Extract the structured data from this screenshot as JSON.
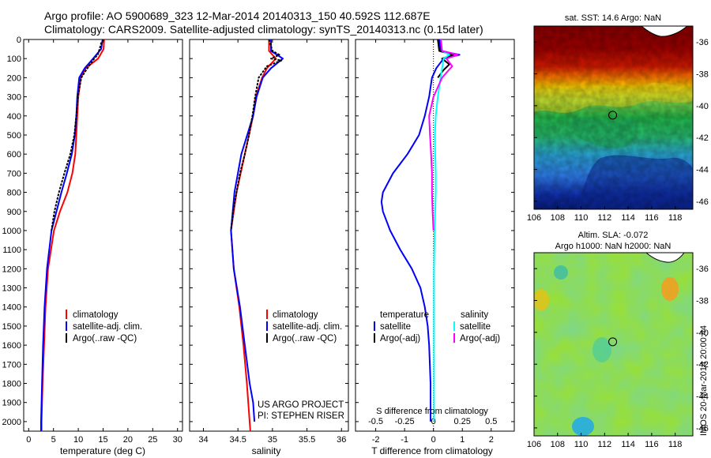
{
  "figure": {
    "title_line1": "Argo profile: AO 5900689_323 12-Mar-2014 20140313_150 40.592S 112.687E",
    "title_line2": "Climatology: CARS2009. Satellite-adjusted climatology: synTS_20140313.nc (0.15d later)",
    "side_label": "IMOS 20-Mar-2014 20:00:44",
    "project_line1": "US ARGO PROJECT",
    "project_line2": "PI: STEPHEN RISER"
  },
  "colors": {
    "climatology": "#ff0000",
    "satellite": "#0000ff",
    "argo": "#000000",
    "salinity_satellite": "#00ffff",
    "salinity_argo": "#ff00ff"
  },
  "chart_data": [
    {
      "type": "line",
      "xlabel": "temperature (deg C)",
      "xlim": [
        -1,
        31
      ],
      "ylim": [
        2050,
        0
      ],
      "xticks": [
        0,
        5,
        10,
        15,
        20,
        25,
        30
      ],
      "yticks": [
        0,
        100,
        200,
        300,
        400,
        500,
        600,
        700,
        800,
        900,
        1000,
        1100,
        1200,
        1300,
        1400,
        1500,
        1600,
        1700,
        1800,
        1900,
        2000
      ],
      "legend": [
        "climatology",
        "satellite-adj. clim.",
        "Argo(..raw -QC)"
      ],
      "series": [
        {
          "name": "climatology",
          "color": "#ff0000",
          "depth": [
            0,
            50,
            100,
            150,
            200,
            300,
            400,
            500,
            600,
            700,
            800,
            900,
            1000,
            1200,
            1400,
            1600,
            1800,
            2000,
            2050
          ],
          "values": [
            15.2,
            15.1,
            14.0,
            11.5,
            10.5,
            10.0,
            9.8,
            9.6,
            9.4,
            8.8,
            7.8,
            6.3,
            5.1,
            3.9,
            3.4,
            3.1,
            2.8,
            2.6,
            2.6
          ]
        },
        {
          "name": "satellite-adj. clim.",
          "color": "#0000ff",
          "depth": [
            0,
            50,
            100,
            150,
            200,
            300,
            400,
            500,
            600,
            700,
            800,
            900,
            1000,
            1200,
            1400,
            1600,
            1800,
            2000,
            2050
          ],
          "values": [
            14.9,
            14.6,
            13.0,
            11.3,
            10.2,
            9.8,
            9.6,
            9.3,
            8.7,
            7.7,
            6.6,
            5.6,
            4.6,
            3.7,
            3.2,
            2.9,
            2.7,
            2.5,
            2.5
          ]
        },
        {
          "name": "Argo(..raw -QC)",
          "color": "#000000",
          "depth": [
            0,
            20,
            50,
            80,
            100,
            130,
            160,
            200,
            300,
            400,
            500,
            600,
            700,
            800,
            900,
            1000
          ],
          "values": [
            15.1,
            14.6,
            14.3,
            13.9,
            13.2,
            12.4,
            11.6,
            10.6,
            9.9,
            9.6,
            9.2,
            8.4,
            7.2,
            6.1,
            5.2,
            4.6
          ]
        }
      ]
    },
    {
      "type": "line",
      "xlabel": "salinity",
      "xlim": [
        33.8,
        36.1
      ],
      "ylim": [
        2050,
        0
      ],
      "xticks": [
        34,
        34.5,
        35,
        35.5,
        36
      ],
      "legend": [
        "climatology",
        "satellite-adj. clim.",
        "Argo(..raw -QC)"
      ],
      "series": [
        {
          "name": "climatology",
          "color": "#ff0000",
          "depth": [
            0,
            60,
            100,
            150,
            200,
            300,
            400,
            600,
            800,
            1000,
            1200,
            1400,
            1600,
            1800,
            2000,
            2050
          ],
          "values": [
            34.95,
            34.95,
            35.05,
            34.92,
            34.85,
            34.76,
            34.72,
            34.6,
            34.48,
            34.4,
            34.44,
            34.52,
            34.58,
            34.63,
            34.67,
            34.68
          ]
        },
        {
          "name": "satellite-adj. clim.",
          "color": "#0000ff",
          "depth": [
            0,
            60,
            100,
            150,
            200,
            300,
            400,
            600,
            800,
            1000,
            1200,
            1400,
            1600,
            1800,
            1900,
            2000
          ],
          "values": [
            34.98,
            34.98,
            35.15,
            34.98,
            34.86,
            34.77,
            34.72,
            34.55,
            34.45,
            34.4,
            34.44,
            34.53,
            34.6,
            34.67,
            34.72,
            34.74
          ]
        },
        {
          "name": "Argo(..raw -QC)",
          "color": "#000000",
          "depth": [
            0,
            60,
            80,
            100,
            110,
            140,
            200,
            300,
            400,
            500,
            600,
            700,
            800,
            900,
            1000
          ],
          "values": [
            34.95,
            35.0,
            35.1,
            34.98,
            35.13,
            34.92,
            34.8,
            34.75,
            34.71,
            34.66,
            34.6,
            34.53,
            34.48,
            34.43,
            34.4
          ]
        }
      ]
    },
    {
      "type": "line",
      "xlabel": "T difference from climatology",
      "xlabel_top": "S difference from climatology",
      "xlim": [
        -2.7,
        2.8
      ],
      "ylim": [
        2050,
        0
      ],
      "xticks": [
        -2,
        -1,
        0,
        1,
        2
      ],
      "xticks_top": [
        -0.5,
        -0.25,
        0,
        0.25,
        0.5
      ],
      "legend_headers": [
        "temperature",
        "salinity"
      ],
      "legend": [
        "satellite",
        "Argo(-adj)",
        "satellite",
        "Argo(-adj)"
      ],
      "series": [
        {
          "name": "satellite",
          "group": "temperature",
          "color": "#0000ff",
          "depth": [
            0,
            60,
            80,
            100,
            150,
            200,
            300,
            400,
            500,
            600,
            700,
            800,
            850,
            900,
            1000,
            1100,
            1200,
            1300,
            1400,
            1500,
            1600,
            1800,
            2000
          ],
          "values": [
            0.2,
            0.25,
            0.9,
            0.35,
            0.1,
            -0.05,
            -0.15,
            -0.3,
            -0.5,
            -0.9,
            -1.4,
            -1.75,
            -1.8,
            -1.75,
            -1.5,
            -1.15,
            -0.75,
            -0.45,
            -0.3,
            -0.2,
            -0.15,
            -0.1,
            -0.1
          ]
        },
        {
          "name": "Argo(-adj)",
          "group": "temperature",
          "color": "#000000",
          "depth": [
            0,
            60,
            80,
            100,
            130,
            160,
            200
          ],
          "values": [
            0.15,
            0.2,
            0.7,
            0.3,
            0.55,
            0.35,
            0.15
          ]
        },
        {
          "name": "satellite",
          "group": "salinity",
          "color": "#00ffff",
          "depth": [
            0,
            60,
            80,
            100,
            150,
            200,
            300,
            400,
            500,
            600,
            700,
            800,
            900,
            1000,
            1200,
            1400,
            1600,
            1800,
            2000
          ],
          "values": [
            0.27,
            0.3,
            0.55,
            0.35,
            0.3,
            0.25,
            0.15,
            0.08,
            0.05,
            0.06,
            0.08,
            0.08,
            0.06,
            0.04,
            0.02,
            0.02,
            0.02,
            0.02,
            0.02
          ]
        },
        {
          "name": "Argo(-adj)",
          "group": "salinity",
          "color": "#ff00ff",
          "depth": [
            0,
            60,
            80,
            100,
            140,
            200,
            300,
            400,
            500,
            600,
            700,
            800,
            900,
            1000
          ],
          "values": [
            0.25,
            0.3,
            0.85,
            0.45,
            0.65,
            0.3,
            0.0,
            -0.15,
            -0.12,
            -0.08,
            -0.05,
            -0.05,
            -0.03,
            0.0
          ]
        }
      ]
    },
    {
      "type": "heatmap",
      "title": "sat. SST: 14.6  Argo: NaN",
      "xlim": [
        106,
        119.5
      ],
      "ylim": [
        -46.5,
        -35
      ],
      "xticks": [
        106,
        108,
        110,
        112,
        114,
        116,
        118
      ],
      "yticks": [
        -36,
        -38,
        -40,
        -42,
        -44,
        -46
      ],
      "marker": {
        "lon": 112.687,
        "lat": -40.592
      }
    },
    {
      "type": "heatmap",
      "title_line1": "Altim. SLA: -0.072",
      "title_line2": "Argo h1000: NaN h2000: NaN",
      "xlim": [
        106,
        119.5
      ],
      "ylim": [
        -46.5,
        -35
      ],
      "xticks": [
        106,
        108,
        110,
        112,
        114,
        116,
        118
      ],
      "yticks": [
        -36,
        -38,
        -40,
        -42,
        -44,
        -46
      ],
      "marker": {
        "lon": 112.687,
        "lat": -40.592
      }
    }
  ]
}
